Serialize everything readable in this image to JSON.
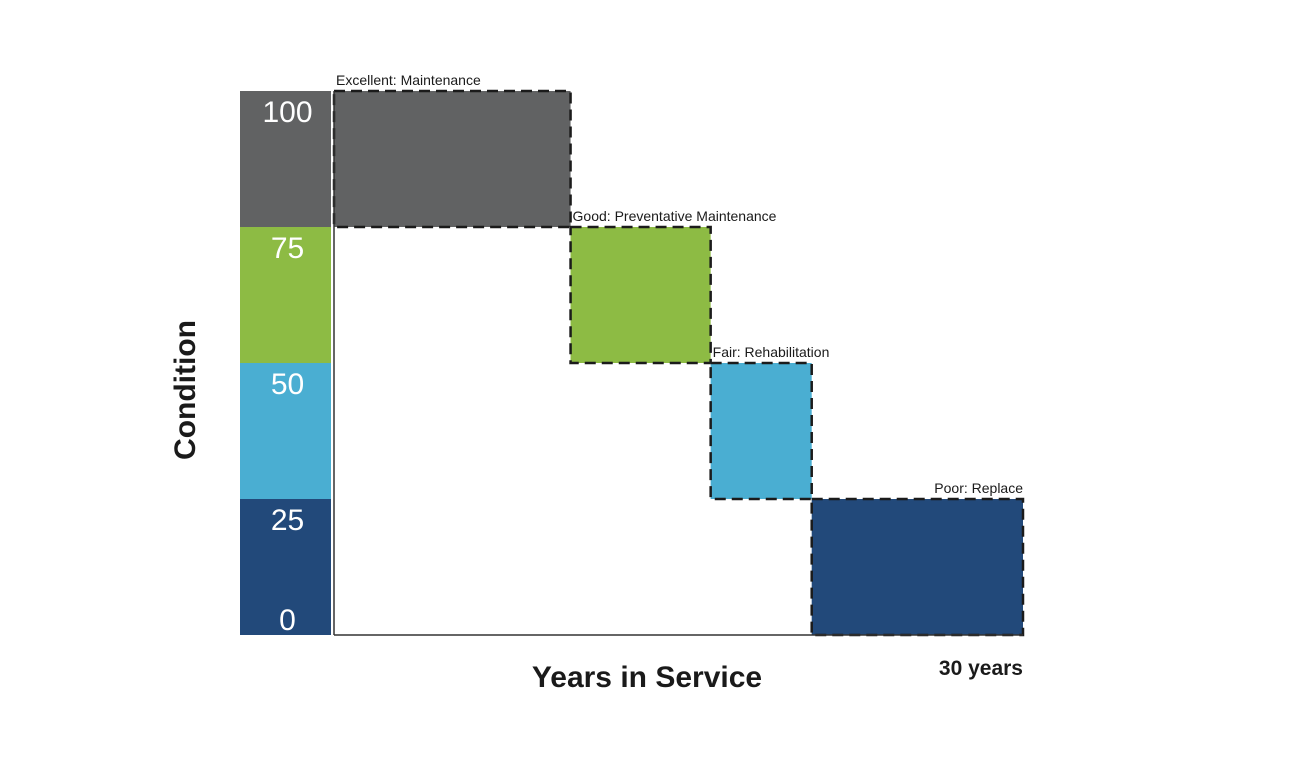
{
  "chart_data": {
    "type": "bar",
    "title": "",
    "xlabel": "Years in Service",
    "ylabel": "Condition",
    "x_end_label": "30 years",
    "ylim": [
      0,
      100
    ],
    "yticks": [
      {
        "value": 100,
        "label": "100"
      },
      {
        "value": 75,
        "label": "75"
      },
      {
        "value": 50,
        "label": "50"
      },
      {
        "value": 25,
        "label": "25"
      },
      {
        "value": 0,
        "label": "0"
      }
    ],
    "condition_bands": [
      {
        "from": 75,
        "to": 100,
        "color": "#616263"
      },
      {
        "from": 50,
        "to": 75,
        "color": "#8dbb44"
      },
      {
        "from": 25,
        "to": 50,
        "color": "#4aaed2"
      },
      {
        "from": 0,
        "to": 25,
        "color": "#22497a"
      }
    ],
    "stages": [
      {
        "label": "Excellent: Maintenance",
        "x_start": 0,
        "x_end": 10.3,
        "y_low": 75,
        "y_high": 100,
        "color": "#616263"
      },
      {
        "label": "Good: Preventative Maintenance",
        "x_start": 10.3,
        "x_end": 16.4,
        "y_low": 50,
        "y_high": 75,
        "color": "#8dbb44"
      },
      {
        "label": "Fair: Rehabilitation",
        "x_start": 16.4,
        "x_end": 20.8,
        "y_low": 25,
        "y_high": 50,
        "color": "#4aaed2"
      },
      {
        "label": "Poor: Replace",
        "x_start": 20.8,
        "x_end": 30,
        "y_low": 0,
        "y_high": 25,
        "color": "#22497a"
      }
    ],
    "xlim": [
      0,
      30
    ],
    "grid": false,
    "legend": "none"
  }
}
